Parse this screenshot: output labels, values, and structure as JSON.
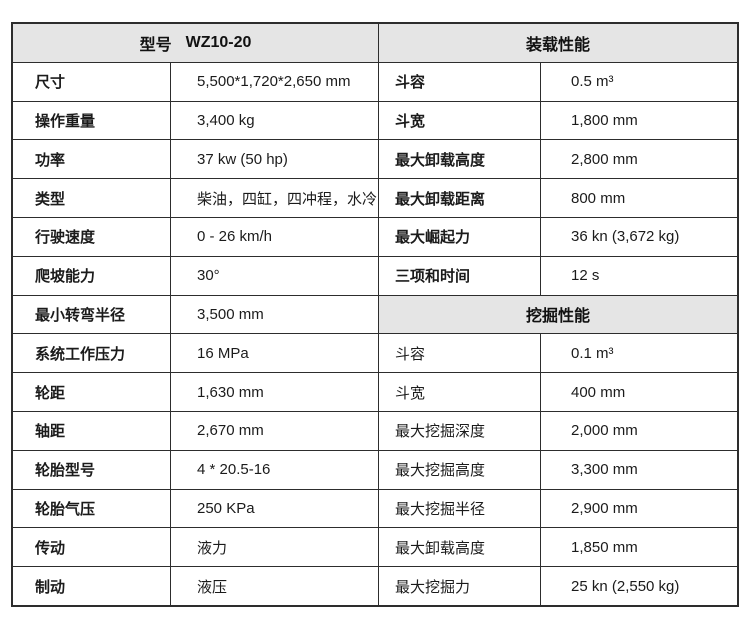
{
  "table": {
    "model_header": {
      "label": "型号",
      "value": "WZ10-20"
    },
    "loading_header": "装载性能",
    "digging_header": "挖掘性能",
    "left_rows": [
      {
        "label": "尺寸",
        "value": "5,500*1,720*2,650 mm"
      },
      {
        "label": "操作重量",
        "value": "3,400 kg"
      },
      {
        "label": "功率",
        "value": "37 kw (50 hp)"
      },
      {
        "label": "类型",
        "value": "柴油，四缸，四冲程，水冷"
      },
      {
        "label": "行驶速度",
        "value": "0 - 26 km/h"
      },
      {
        "label": "爬坡能力",
        "value": "30°"
      },
      {
        "label": "最小转弯半径",
        "value": "3,500 mm"
      },
      {
        "label": "系统工作压力",
        "value": "16 MPa"
      },
      {
        "label": "轮距",
        "value": "1,630 mm"
      },
      {
        "label": "轴距",
        "value": "2,670 mm"
      },
      {
        "label": "轮胎型号",
        "value": "4 * 20.5-16"
      },
      {
        "label": "轮胎气压",
        "value": "250 KPa"
      },
      {
        "label": "传动",
        "value": "液力"
      },
      {
        "label": "制动",
        "value": "液压"
      }
    ],
    "loading_rows": [
      {
        "label": "斗容",
        "value": "0.5 m³"
      },
      {
        "label": "斗宽",
        "value": "1,800 mm"
      },
      {
        "label": "最大卸载高度",
        "value": "2,800 mm"
      },
      {
        "label": "最大卸载距离",
        "value": "800 mm"
      },
      {
        "label": "最大崛起力",
        "value": "36 kn (3,672 kg)"
      },
      {
        "label": "三项和时间",
        "value": "12 s"
      }
    ],
    "digging_rows": [
      {
        "label": "斗容",
        "value": "0.1 m³"
      },
      {
        "label": "斗宽",
        "value": "400 mm"
      },
      {
        "label": "最大挖掘深度",
        "value": "2,000 mm"
      },
      {
        "label": "最大挖掘高度",
        "value": "3,300 mm"
      },
      {
        "label": "最大挖掘半径",
        "value": "2,900 mm"
      },
      {
        "label": "最大卸载高度",
        "value": "1,850 mm"
      },
      {
        "label": "最大挖掘力",
        "value": "25 kn (2,550 kg)"
      }
    ],
    "colors": {
      "header_bg": "#e5e5e5",
      "grid_line": "#2d2d2d",
      "text": "#1b1b1b",
      "page_bg": "#ffffff"
    }
  }
}
